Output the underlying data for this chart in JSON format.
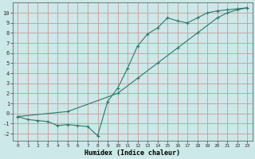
{
  "xlabel": "Humidex (Indice chaleur)",
  "bg_color": "#cce8e8",
  "grid_color": "#cc9999",
  "line_color": "#2a7a6a",
  "xlim": [
    -0.5,
    23.5
  ],
  "ylim": [
    -2.7,
    11.0
  ],
  "xticks": [
    0,
    1,
    2,
    3,
    4,
    5,
    6,
    7,
    8,
    9,
    10,
    11,
    12,
    13,
    14,
    15,
    16,
    17,
    18,
    19,
    20,
    21,
    22,
    23
  ],
  "yticks": [
    -2,
    -1,
    0,
    1,
    2,
    3,
    4,
    5,
    6,
    7,
    8,
    9,
    10
  ],
  "line1_x": [
    0,
    1,
    2,
    3,
    4,
    5,
    6,
    7,
    8,
    9,
    10,
    11,
    12,
    13,
    14,
    15,
    16,
    17,
    18,
    19,
    20,
    21,
    22,
    23
  ],
  "line1_y": [
    -0.3,
    -0.6,
    -0.7,
    -0.8,
    -1.2,
    -1.1,
    -1.2,
    -1.3,
    -2.2,
    1.2,
    2.5,
    4.5,
    6.7,
    7.9,
    8.5,
    9.5,
    9.2,
    9.0,
    9.5,
    10.0,
    10.2,
    10.3,
    10.4,
    10.5
  ],
  "line2_x": [
    0,
    5,
    10,
    12,
    14,
    16,
    18,
    20,
    21,
    22,
    23
  ],
  "line2_y": [
    -0.3,
    0.2,
    2.0,
    3.5,
    5.0,
    6.5,
    8.0,
    9.5,
    10.0,
    10.3,
    10.5
  ]
}
